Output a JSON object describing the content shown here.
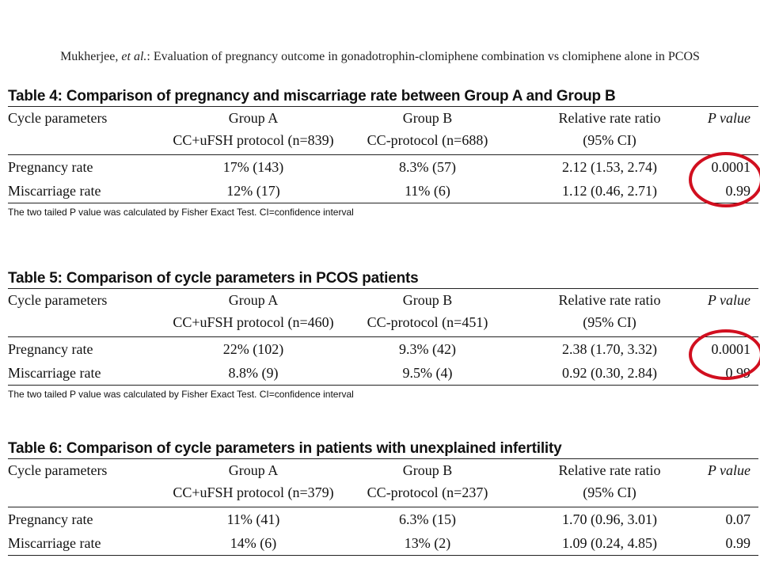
{
  "header": {
    "author": "Mukherjee, ",
    "etal": "et al.",
    "rest": ": Evaluation of pregnancy outcome in gonadotrophin-clomiphene combination vs clomiphene alone in PCOS"
  },
  "tables": [
    {
      "title": "Table 4: Comparison of pregnancy and miscarriage rate between Group A and Group B",
      "headers": [
        [
          "Cycle parameters",
          ""
        ],
        [
          "Group A",
          "CC+uFSH protocol (n=839)"
        ],
        [
          "Group B",
          "CC-protocol (n=688)"
        ],
        [
          "Relative rate ratio",
          "(95% CI)"
        ],
        [
          "P value",
          ""
        ]
      ],
      "rows": [
        [
          "Pregnancy rate",
          "17% (143)",
          "8.3% (57)",
          "2.12 (1.53, 2.74)",
          "0.0001"
        ],
        [
          "Miscarriage rate",
          "12% (17)",
          "11% (6)",
          "1.12 (0.46, 2.71)",
          "0.99"
        ]
      ],
      "note": "The two tailed P value was calculated by Fisher Exact Test. CI=confidence interval"
    },
    {
      "title": "Table 5: Comparison of cycle parameters in PCOS patients",
      "headers": [
        [
          "Cycle parameters",
          ""
        ],
        [
          "Group A",
          "CC+uFSH protocol (n=460)"
        ],
        [
          "Group B",
          "CC-protocol (n=451)"
        ],
        [
          "Relative rate ratio",
          "(95% CI)"
        ],
        [
          "P value",
          ""
        ]
      ],
      "rows": [
        [
          "Pregnancy rate",
          "22% (102)",
          "9.3% (42)",
          "2.38 (1.70, 3.32)",
          "0.0001"
        ],
        [
          "Miscarriage rate",
          "8.8% (9)",
          "9.5% (4)",
          "0.92 (0.30, 2.84)",
          "0.99"
        ]
      ],
      "note": "The two tailed P value was calculated by Fisher Exact Test. CI=confidence interval"
    },
    {
      "title": "Table 6: Comparison of cycle parameters in patients with unexplained infertility",
      "headers": [
        [
          "Cycle parameters",
          ""
        ],
        [
          "Group A",
          "CC+uFSH protocol (n=379)"
        ],
        [
          "Group B",
          "CC-protocol (n=237)"
        ],
        [
          "Relative rate ratio",
          "(95% CI)"
        ],
        [
          "P value",
          ""
        ]
      ],
      "rows": [
        [
          "Pregnancy rate",
          "11% (41)",
          "6.3% (15)",
          "1.70 (0.96, 3.01)",
          "0.07"
        ],
        [
          "Miscarriage rate",
          "14% (6)",
          "13% (2)",
          "1.09 (0.24, 4.85)",
          "0.99"
        ]
      ],
      "note": ""
    }
  ],
  "annotation_color": "#d10f1f"
}
